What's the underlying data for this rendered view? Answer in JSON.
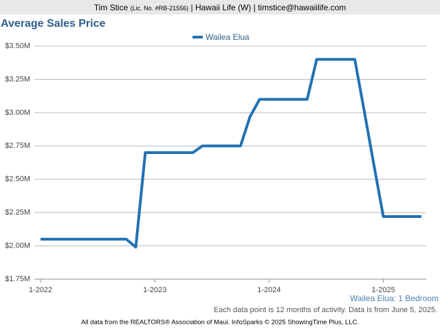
{
  "header": {
    "agent": "Tim Stice",
    "license": "(Lic. No. #RB-21556)",
    "rest": "| Hawaii Life (W) | timstice@hawaiilife.com"
  },
  "chart_data": {
    "type": "line",
    "title": "Average Sales Price",
    "categories": [
      "1-2022",
      null,
      null,
      null,
      null,
      null,
      null,
      null,
      null,
      null,
      null,
      null,
      "1-2023",
      null,
      null,
      null,
      null,
      null,
      null,
      null,
      null,
      null,
      null,
      null,
      "1-2024",
      null,
      null,
      null,
      null,
      null,
      null,
      null,
      null,
      null,
      null,
      null,
      "1-2025",
      null,
      null,
      null,
      null
    ],
    "series": [
      {
        "name": "Wailea Elua",
        "color": "#2271b3",
        "values": [
          2050000,
          2050000,
          2050000,
          2050000,
          2050000,
          2050000,
          2050000,
          2050000,
          2050000,
          2050000,
          1990000,
          2700000,
          2700000,
          2700000,
          2700000,
          2700000,
          2700000,
          2750000,
          2750000,
          2750000,
          2750000,
          2750000,
          2970000,
          3100000,
          3100000,
          3100000,
          3100000,
          3100000,
          3100000,
          3400000,
          3400000,
          3400000,
          3400000,
          3400000,
          3010000,
          2610000,
          2220000,
          2220000,
          2220000,
          2220000,
          2220000
        ]
      }
    ],
    "ylim": [
      1750000,
      3500000
    ],
    "yticks": [
      {
        "value": 1750000,
        "label": "$1.75M"
      },
      {
        "value": 2000000,
        "label": "$2.00M"
      },
      {
        "value": 2250000,
        "label": "$2.25M"
      },
      {
        "value": 2500000,
        "label": "$2.50M"
      },
      {
        "value": 2750000,
        "label": "$2.75M"
      },
      {
        "value": 3000000,
        "label": "$3.00M"
      },
      {
        "value": 3250000,
        "label": "$3.25M"
      },
      {
        "value": 3500000,
        "label": "$3.50M"
      }
    ],
    "grid": true,
    "legend": "top",
    "subtitle": "Wailea Elua: 1 Bedroom",
    "note": "Each data point is 12 months of activity. Data is from June 5, 2025.",
    "footer": "All data from the REALTORS® Association of Maui. InfoSparks © 2025 ShowingTime Plus, LLC."
  }
}
